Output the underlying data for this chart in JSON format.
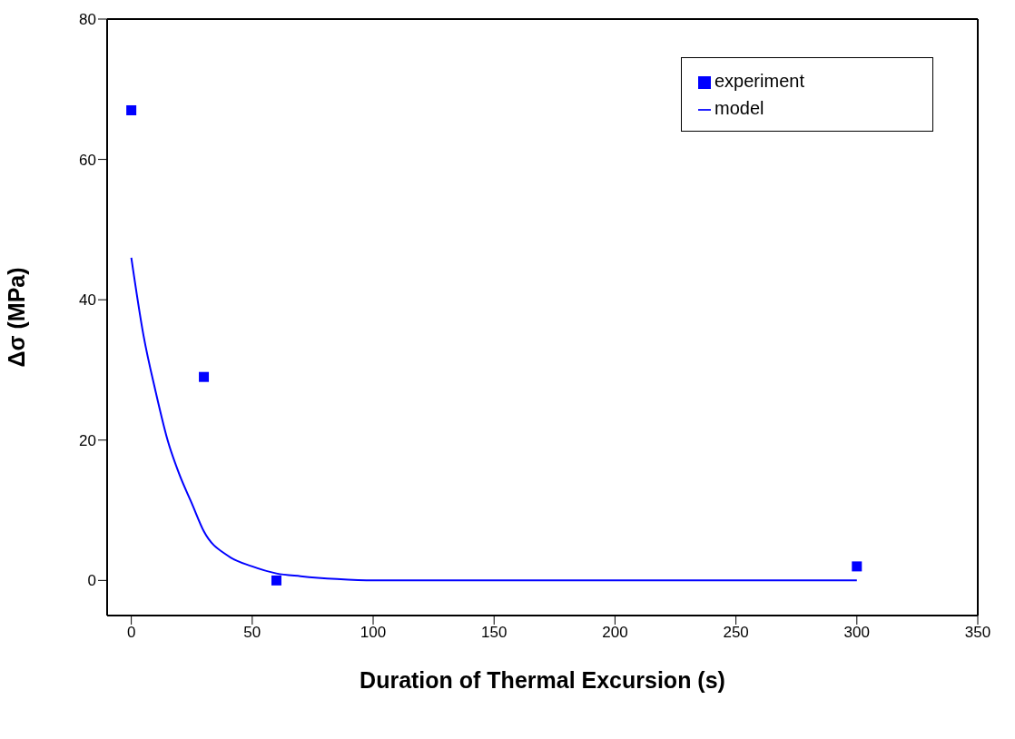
{
  "chart_data": {
    "type": "scatter",
    "xlabel": "Duration of Thermal Excursion (s)",
    "ylabel": "Δσ  (MPa)",
    "xlim": [
      -10,
      350
    ],
    "ylim": [
      -5,
      80
    ],
    "xticks": [
      0,
      50,
      100,
      150,
      200,
      250,
      300,
      350
    ],
    "yticks": [
      0,
      20,
      40,
      60,
      80
    ],
    "grid": false,
    "legend": "top right",
    "series": [
      {
        "name": "experiment",
        "color": "#0000ff",
        "marker": "square",
        "x": [
          0,
          30,
          60,
          300
        ],
        "values": [
          67,
          29,
          0,
          2
        ]
      },
      {
        "name": "model",
        "type": "line",
        "color": "#0000ff",
        "marker": "none",
        "line_style": "solid",
        "x": [
          0,
          5,
          10,
          15,
          20,
          25,
          30,
          40,
          50,
          60,
          70,
          85,
          100,
          150,
          200,
          300
        ],
        "values": [
          46,
          35,
          27,
          20,
          15,
          11,
          7,
          3.5,
          2,
          1,
          0.6,
          0.2,
          0,
          0,
          0,
          0
        ]
      }
    ]
  }
}
